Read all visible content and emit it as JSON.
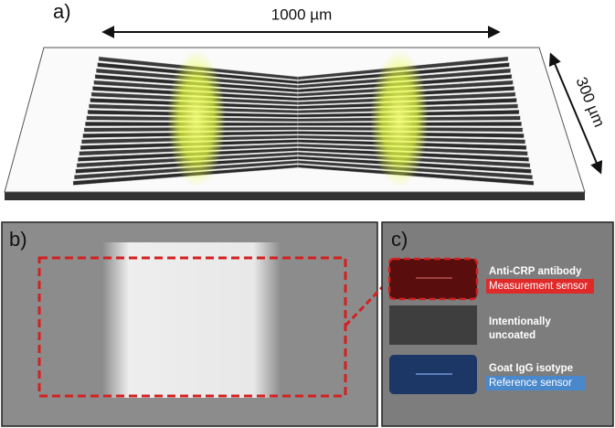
{
  "panel_a": {
    "label": "a)",
    "length_label": "1000 µm",
    "width_label": "300 µm"
  },
  "panel_b": {
    "label": "b)"
  },
  "panel_c": {
    "label": "c)",
    "sensors": [
      {
        "title": "Anti-CRP antibody",
        "role": "Measurement sensor"
      },
      {
        "title_lines": [
          "Intentionally",
          "uncoated"
        ]
      },
      {
        "title": "Goat IgG isotype",
        "role": "Reference sensor"
      }
    ]
  }
}
